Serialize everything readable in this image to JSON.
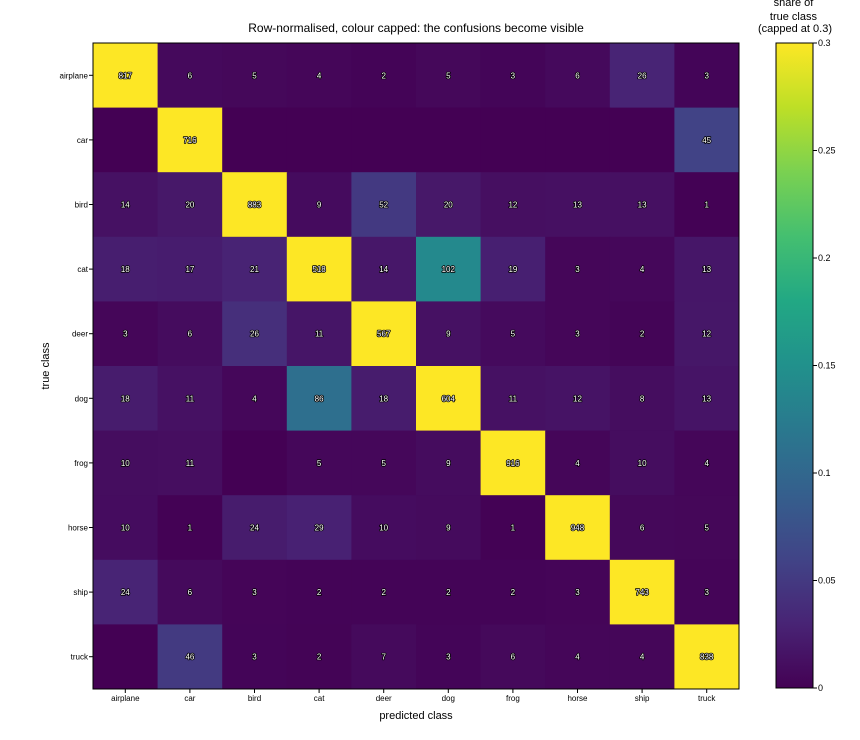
{
  "chart_data": {
    "type": "heatmap",
    "title": "Row-normalised, colour capped: the confusions become visible",
    "xlabel": "predicted class",
    "ylabel": "true class",
    "colorbar_label": [
      "share of",
      "true class",
      "(capped at 0.3)"
    ],
    "colorbar_range": [
      0,
      0.3
    ],
    "colorbar_ticks": [
      0,
      0.05,
      0.1,
      0.15,
      0.2,
      0.25,
      0.3
    ],
    "colormap": "viridis",
    "row_labels": [
      "airplane",
      "car",
      "bird",
      "cat",
      "deer",
      "dog",
      "frog",
      "horse",
      "ship",
      "truck"
    ],
    "col_labels": [
      "airplane",
      "car",
      "bird",
      "cat",
      "deer",
      "dog",
      "frog",
      "horse",
      "ship",
      "truck"
    ],
    "cell_values": [
      [
        817,
        6,
        5,
        4,
        2,
        5,
        3,
        6,
        26,
        3
      ],
      [
        0,
        716,
        0,
        0,
        0,
        0,
        0,
        0,
        0,
        45
      ],
      [
        14,
        20,
        883,
        9,
        52,
        20,
        12,
        13,
        13,
        1
      ],
      [
        18,
        17,
        21,
        518,
        14,
        102,
        19,
        3,
        4,
        13
      ],
      [
        3,
        6,
        26,
        11,
        567,
        9,
        5,
        3,
        2,
        12
      ],
      [
        18,
        11,
        4,
        86,
        18,
        604,
        11,
        12,
        8,
        13
      ],
      [
        10,
        11,
        0,
        5,
        5,
        9,
        916,
        4,
        10,
        4
      ],
      [
        10,
        1,
        24,
        29,
        10,
        9,
        1,
        948,
        6,
        5
      ],
      [
        24,
        6,
        3,
        2,
        2,
        2,
        2,
        3,
        743,
        3
      ],
      [
        0,
        46,
        3,
        2,
        7,
        3,
        6,
        4,
        4,
        838
      ]
    ],
    "cell_labels": [
      [
        "817",
        "6",
        "5",
        "4",
        "2",
        "5",
        "3",
        "6",
        "26",
        "3"
      ],
      [
        "",
        "716",
        "",
        "",
        "",
        "",
        "",
        "",
        "",
        "45"
      ],
      [
        "14",
        "20",
        "883",
        "9",
        "52",
        "20",
        "12",
        "13",
        "13",
        "1"
      ],
      [
        "18",
        "17",
        "21",
        "518",
        "14",
        "102",
        "19",
        "3",
        "4",
        "13"
      ],
      [
        "3",
        "6",
        "26",
        "11",
        "567",
        "9",
        "5",
        "3",
        "2",
        "12"
      ],
      [
        "18",
        "11",
        "4",
        "86",
        "18",
        "604",
        "11",
        "12",
        "8",
        "13"
      ],
      [
        "10",
        "11",
        "",
        "5",
        "5",
        "9",
        "916",
        "4",
        "10",
        "4"
      ],
      [
        "10",
        "1",
        "24",
        "29",
        "10",
        "9",
        "1",
        "948",
        "6",
        "5"
      ],
      [
        "24",
        "6",
        "3",
        "2",
        "2",
        "2",
        "2",
        "3",
        "743",
        "3"
      ],
      [
        "",
        "46",
        "3",
        "2",
        "7",
        "3",
        "6",
        "4",
        "4",
        "838"
      ]
    ]
  }
}
